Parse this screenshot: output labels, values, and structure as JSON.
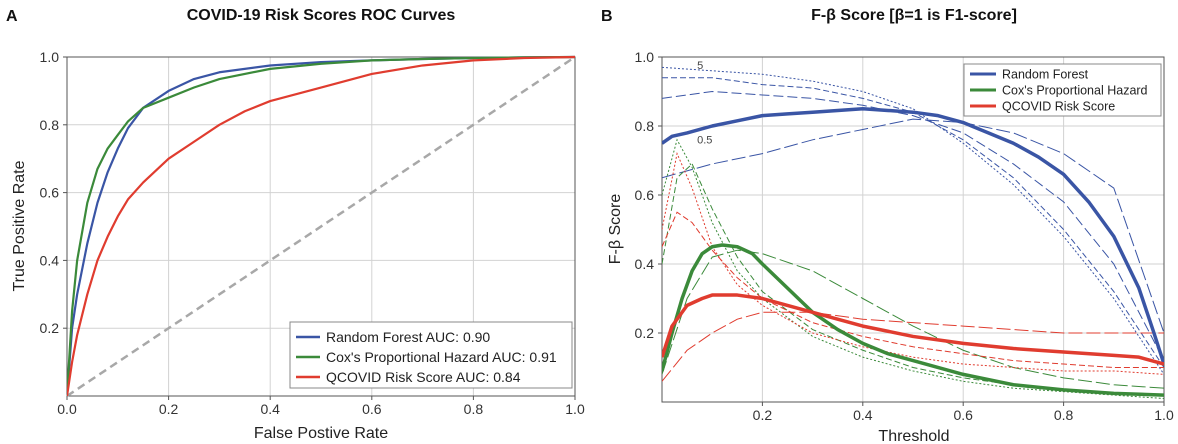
{
  "chart_data": [
    {
      "panel": "A",
      "type": "line",
      "title": "COVID-19 Risk Scores ROC Curves",
      "xlabel": "False Postive Rate",
      "ylabel": "True Positive Rate",
      "xlim": [
        0,
        1
      ],
      "ylim": [
        0,
        1
      ],
      "xticks": [
        "0.0",
        "0.2",
        "0.4",
        "0.6",
        "0.8",
        "1.0"
      ],
      "yticks": [
        "0.2",
        "0.4",
        "0.6",
        "0.8",
        "1.0"
      ],
      "grid": true,
      "legend_position": "lower-right",
      "colors": {
        "rf": "#3a55a5",
        "cox": "#3b8a3a",
        "qcovid": "#e03c2f",
        "diag": "#a8a8a8"
      },
      "series": [
        {
          "name": "Random Forest AUC: 0.90",
          "key": "rf",
          "x": [
            0,
            0.01,
            0.02,
            0.04,
            0.06,
            0.08,
            0.1,
            0.12,
            0.15,
            0.2,
            0.25,
            0.3,
            0.4,
            0.5,
            0.6,
            0.7,
            0.8,
            0.9,
            1.0
          ],
          "y": [
            0,
            0.2,
            0.3,
            0.45,
            0.57,
            0.66,
            0.73,
            0.79,
            0.85,
            0.9,
            0.935,
            0.955,
            0.975,
            0.985,
            0.99,
            0.994,
            0.997,
            0.999,
            1.0
          ]
        },
        {
          "name": "Cox's Proportional Hazard AUC: 0.91",
          "key": "cox",
          "x": [
            0,
            0.01,
            0.02,
            0.04,
            0.06,
            0.08,
            0.1,
            0.12,
            0.15,
            0.2,
            0.25,
            0.3,
            0.4,
            0.5,
            0.6,
            0.7,
            0.8,
            0.9,
            1.0
          ],
          "y": [
            0,
            0.25,
            0.4,
            0.57,
            0.67,
            0.73,
            0.77,
            0.81,
            0.85,
            0.88,
            0.91,
            0.935,
            0.965,
            0.98,
            0.99,
            0.994,
            0.997,
            0.999,
            1.0
          ]
        },
        {
          "name": "QCOVID Risk Score AUC: 0.84",
          "key": "qcovid",
          "x": [
            0,
            0.01,
            0.02,
            0.04,
            0.06,
            0.08,
            0.1,
            0.12,
            0.15,
            0.2,
            0.25,
            0.3,
            0.35,
            0.4,
            0.5,
            0.6,
            0.7,
            0.8,
            0.9,
            1.0
          ],
          "y": [
            0,
            0.1,
            0.18,
            0.3,
            0.4,
            0.47,
            0.53,
            0.58,
            0.63,
            0.7,
            0.75,
            0.8,
            0.84,
            0.87,
            0.91,
            0.95,
            0.975,
            0.99,
            0.997,
            1.0
          ]
        }
      ],
      "diagonal": {
        "x": [
          0,
          1
        ],
        "y": [
          0,
          1
        ]
      }
    },
    {
      "panel": "B",
      "type": "line",
      "title": "F-β Score [β=1 is F1-score]",
      "xlabel": "Threshold",
      "ylabel": "F-β Score",
      "xlim": [
        0,
        1
      ],
      "ylim": [
        0,
        1
      ],
      "xticks": [
        "0.2",
        "0.4",
        "0.6",
        "0.8",
        "1.0"
      ],
      "yticks": [
        "0.2",
        "0.4",
        "0.6",
        "0.8",
        "1.0"
      ],
      "grid": true,
      "legend_position": "top-right",
      "annotations": [
        "5",
        "0.5"
      ],
      "series": [
        {
          "name": "Random Forest",
          "key": "rf",
          "x": [
            0,
            0.02,
            0.05,
            0.1,
            0.15,
            0.2,
            0.25,
            0.3,
            0.35,
            0.4,
            0.45,
            0.5,
            0.55,
            0.6,
            0.65,
            0.7,
            0.75,
            0.8,
            0.85,
            0.9,
            0.95,
            0.98,
            1.0
          ],
          "y": [
            0.75,
            0.77,
            0.78,
            0.8,
            0.815,
            0.83,
            0.835,
            0.84,
            0.845,
            0.85,
            0.845,
            0.84,
            0.83,
            0.81,
            0.78,
            0.75,
            0.71,
            0.66,
            0.58,
            0.48,
            0.33,
            0.2,
            0.11
          ]
        },
        {
          "name": "Cox's Proportional Hazard",
          "key": "cox",
          "x": [
            0,
            0.02,
            0.04,
            0.06,
            0.08,
            0.1,
            0.12,
            0.15,
            0.18,
            0.2,
            0.25,
            0.3,
            0.35,
            0.4,
            0.45,
            0.5,
            0.6,
            0.7,
            0.8,
            0.9,
            1.0
          ],
          "y": [
            0.09,
            0.2,
            0.3,
            0.38,
            0.43,
            0.45,
            0.455,
            0.45,
            0.43,
            0.4,
            0.33,
            0.26,
            0.21,
            0.17,
            0.14,
            0.12,
            0.08,
            0.05,
            0.035,
            0.025,
            0.02
          ]
        },
        {
          "name": "QCOVID Risk Score",
          "key": "qcovid",
          "x": [
            0,
            0.02,
            0.05,
            0.08,
            0.1,
            0.15,
            0.2,
            0.25,
            0.3,
            0.35,
            0.4,
            0.5,
            0.6,
            0.7,
            0.8,
            0.9,
            0.95,
            1.0
          ],
          "y": [
            0.13,
            0.22,
            0.28,
            0.3,
            0.31,
            0.31,
            0.3,
            0.28,
            0.26,
            0.24,
            0.22,
            0.19,
            0.17,
            0.155,
            0.145,
            0.135,
            0.13,
            0.11
          ]
        }
      ],
      "beta_variants": [
        {
          "key": "rf",
          "dash": "2,2",
          "x": [
            0,
            0.1,
            0.2,
            0.3,
            0.4,
            0.5,
            0.6,
            0.7,
            0.8,
            0.9,
            1.0
          ],
          "y": [
            0.97,
            0.96,
            0.95,
            0.93,
            0.9,
            0.85,
            0.75,
            0.63,
            0.48,
            0.3,
            0.08
          ]
        },
        {
          "key": "rf",
          "dash": "6,3",
          "x": [
            0,
            0.1,
            0.2,
            0.3,
            0.4,
            0.5,
            0.6,
            0.7,
            0.8,
            0.9,
            1.0
          ],
          "y": [
            0.94,
            0.94,
            0.92,
            0.91,
            0.88,
            0.84,
            0.76,
            0.65,
            0.5,
            0.32,
            0.1
          ]
        },
        {
          "key": "rf",
          "dash": "10,4",
          "x": [
            0,
            0.1,
            0.2,
            0.3,
            0.4,
            0.5,
            0.6,
            0.7,
            0.8,
            0.9,
            1.0
          ],
          "y": [
            0.88,
            0.9,
            0.89,
            0.88,
            0.86,
            0.83,
            0.78,
            0.69,
            0.58,
            0.4,
            0.12
          ]
        },
        {
          "key": "rf",
          "dash": "14,4",
          "x": [
            0,
            0.1,
            0.2,
            0.3,
            0.4,
            0.5,
            0.6,
            0.7,
            0.8,
            0.9,
            1.0
          ],
          "y": [
            0.65,
            0.69,
            0.72,
            0.76,
            0.79,
            0.82,
            0.81,
            0.78,
            0.72,
            0.62,
            0.2
          ]
        },
        {
          "key": "cox",
          "dash": "2,2",
          "x": [
            0,
            0.03,
            0.06,
            0.1,
            0.15,
            0.2,
            0.3,
            0.4,
            0.5,
            0.6,
            0.7,
            0.8,
            0.9,
            1.0
          ],
          "y": [
            0.6,
            0.76,
            0.68,
            0.52,
            0.38,
            0.3,
            0.19,
            0.13,
            0.09,
            0.06,
            0.04,
            0.03,
            0.02,
            0.01
          ]
        },
        {
          "key": "cox",
          "dash": "6,3",
          "x": [
            0,
            0.03,
            0.06,
            0.1,
            0.15,
            0.2,
            0.3,
            0.4,
            0.5,
            0.6,
            0.7,
            0.8,
            0.9,
            1.0
          ],
          "y": [
            0.4,
            0.65,
            0.69,
            0.56,
            0.42,
            0.32,
            0.21,
            0.15,
            0.1,
            0.07,
            0.05,
            0.035,
            0.025,
            0.02
          ]
        },
        {
          "key": "cox",
          "dash": "14,4",
          "x": [
            0,
            0.05,
            0.1,
            0.15,
            0.2,
            0.3,
            0.4,
            0.5,
            0.6,
            0.7,
            0.8,
            0.9,
            1.0
          ],
          "y": [
            0.08,
            0.3,
            0.42,
            0.44,
            0.43,
            0.38,
            0.3,
            0.22,
            0.15,
            0.1,
            0.07,
            0.05,
            0.04
          ]
        },
        {
          "key": "qcovid",
          "dash": "2,2",
          "x": [
            0,
            0.03,
            0.06,
            0.1,
            0.15,
            0.2,
            0.3,
            0.4,
            0.5,
            0.6,
            0.7,
            0.8,
            0.9,
            1.0
          ],
          "y": [
            0.5,
            0.72,
            0.62,
            0.45,
            0.34,
            0.28,
            0.2,
            0.16,
            0.13,
            0.11,
            0.1,
            0.09,
            0.09,
            0.08
          ]
        },
        {
          "key": "qcovid",
          "dash": "6,3",
          "x": [
            0,
            0.03,
            0.06,
            0.1,
            0.15,
            0.2,
            0.3,
            0.4,
            0.5,
            0.6,
            0.7,
            0.8,
            0.9,
            1.0
          ],
          "y": [
            0.45,
            0.55,
            0.52,
            0.44,
            0.36,
            0.3,
            0.23,
            0.19,
            0.16,
            0.14,
            0.12,
            0.11,
            0.1,
            0.1
          ]
        },
        {
          "key": "qcovid",
          "dash": "14,4",
          "x": [
            0,
            0.05,
            0.1,
            0.15,
            0.2,
            0.3,
            0.4,
            0.5,
            0.6,
            0.7,
            0.8,
            0.9,
            1.0
          ],
          "y": [
            0.06,
            0.15,
            0.2,
            0.24,
            0.26,
            0.26,
            0.24,
            0.23,
            0.22,
            0.21,
            0.2,
            0.2,
            0.2
          ]
        }
      ]
    }
  ]
}
